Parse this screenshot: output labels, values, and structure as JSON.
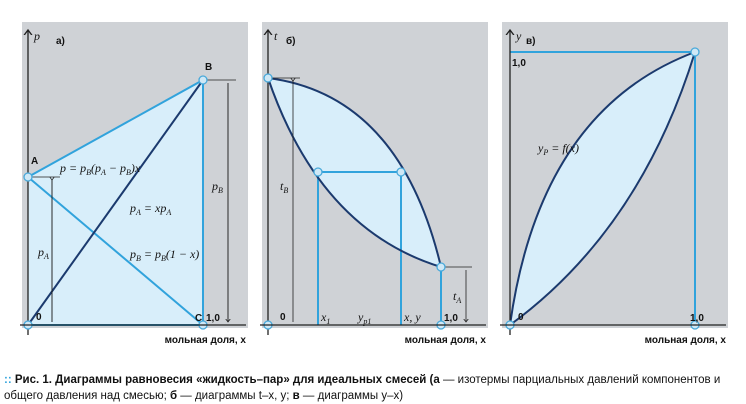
{
  "panel_a": {
    "axis": "p",
    "tag": "а)",
    "point_a": "A",
    "point_b": "B",
    "point_c": "C",
    "origin": "0",
    "x_end": "1,0",
    "formula_total": [
      "p = p",
      "B",
      "(p",
      "A",
      " − p",
      "B",
      ")x"
    ],
    "formula_a": [
      "p",
      "A",
      " = xp",
      "A"
    ],
    "formula_b": [
      "p",
      "B",
      " = p",
      "B",
      "(1 − x)"
    ],
    "dim_a": [
      "p",
      "A"
    ],
    "dim_b": [
      "p",
      "B"
    ],
    "x_label": "мольная доля, x"
  },
  "panel_b": {
    "axis": "t",
    "tag": "б)",
    "origin": "0",
    "x_end": "1,0",
    "dim_b": [
      "t",
      "B"
    ],
    "dim_a": [
      "t",
      "A"
    ],
    "x1": [
      "x",
      "1"
    ],
    "yp": [
      "y",
      "p1"
    ],
    "xy": "x, y",
    "x_label": "мольная доля, x"
  },
  "panel_c": {
    "axis": "y",
    "tag": "в)",
    "y_end": "1,0",
    "origin": "0",
    "x_end": "1,0",
    "formula": [
      "y",
      "P",
      " = f(x)"
    ],
    "x_label": "мольная доля, x"
  },
  "caption": {
    "marker": "::",
    "prefix": "Рис. 1. Диаграммы равновесия «жидкость–пар» для идеальных смесей (",
    "a": "а",
    "a_text": " — изотермы парциальных давлений компонентов и общего давления над смесью; ",
    "b": "б",
    "b_text": " — диаграммы t–x, y; ",
    "v": "в",
    "v_text": " — диаграммы y–x)"
  }
}
